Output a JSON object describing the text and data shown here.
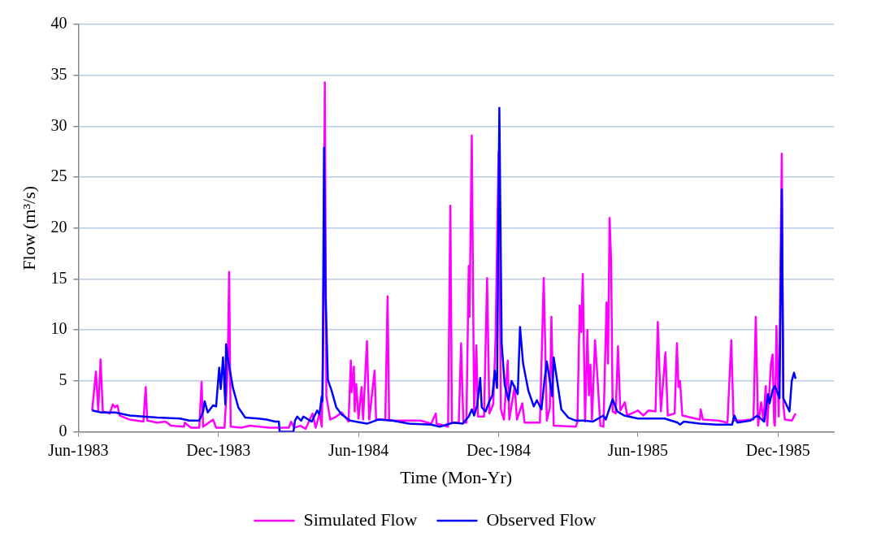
{
  "chart_data": {
    "type": "line",
    "xlabel": "Time (Mon-Yr)",
    "ylabel": "Flow (m³/s)",
    "xlim": [
      "1983-06-01",
      "1986-02-12"
    ],
    "xticks": [
      {
        "value": "1983-06-01",
        "label": "Jun-1983"
      },
      {
        "value": "1983-12-01",
        "label": "Dec-1983"
      },
      {
        "value": "1984-06-01",
        "label": "Jun-1984"
      },
      {
        "value": "1984-12-01",
        "label": "Dec-1984"
      },
      {
        "value": "1985-06-01",
        "label": "Jun-1985"
      },
      {
        "value": "1985-12-01",
        "label": "Dec-1985"
      }
    ],
    "ylim": [
      0,
      40
    ],
    "yticks": [
      0,
      5,
      10,
      15,
      20,
      25,
      30,
      35,
      40
    ],
    "grid": "y",
    "legend": "bottom",
    "marker": "none",
    "line_style": "solid",
    "series": [
      {
        "name": "Simulated Flow",
        "color": "#ff00ff",
        "x": [
          "1983-06-19",
          "1983-06-24",
          "1983-06-27",
          "1983-06-30",
          "1983-07-03",
          "1983-07-12",
          "1983-07-16",
          "1983-07-19",
          "1983-07-22",
          "1983-07-25",
          "1983-08-07",
          "1983-08-25",
          "1983-08-28",
          "1983-08-30",
          "1983-09-12",
          "1983-09-23",
          "1983-09-30",
          "1983-10-17",
          "1983-10-18",
          "1983-10-26",
          "1983-11-06",
          "1983-11-09",
          "1983-11-11",
          "1983-11-24",
          "1983-11-28",
          "1983-12-09",
          "1983-12-13",
          "1983-12-15",
          "1983-12-17",
          "1983-12-31",
          "1984-01-11",
          "1984-02-05",
          "1984-03-02",
          "1984-03-05",
          "1984-03-09",
          "1984-03-17",
          "1984-03-24",
          "1984-04-02",
          "1984-04-06",
          "1984-04-11",
          "1984-04-14",
          "1984-04-16",
          "1984-04-18",
          "1984-04-20",
          "1984-04-25",
          "1984-05-03",
          "1984-05-10",
          "1984-05-19",
          "1984-05-22",
          "1984-05-23",
          "1984-05-26",
          "1984-05-27",
          "1984-05-29",
          "1984-06-01",
          "1984-06-05",
          "1984-06-07",
          "1984-06-12",
          "1984-06-15",
          "1984-06-22",
          "1984-06-24",
          "1984-07-06",
          "1984-07-09",
          "1984-07-11",
          "1984-08-21",
          "1984-09-04",
          "1984-09-10",
          "1984-09-11",
          "1984-09-26",
          "1984-09-29",
          "1984-10-01",
          "1984-10-10",
          "1984-10-13",
          "1984-10-16",
          "1984-10-20",
          "1984-10-23",
          "1984-10-24",
          "1984-10-27",
          "1984-10-30",
          "1984-11-02",
          "1984-11-04",
          "1984-11-12",
          "1984-11-16",
          "1984-11-19",
          "1984-11-24",
          "1984-11-27",
          "1984-12-01",
          "1984-12-04",
          "1984-12-08",
          "1984-12-13",
          "1984-12-15",
          "1984-12-22",
          "1984-12-25",
          "1985-01-01",
          "1985-01-04",
          "1985-01-24",
          "1985-01-29",
          "1985-02-02",
          "1985-02-06",
          "1985-02-08",
          "1985-02-11",
          "1985-03-12",
          "1985-03-14",
          "1985-03-17",
          "1985-03-19",
          "1985-03-21",
          "1985-03-24",
          "1985-03-27",
          "1985-03-29",
          "1985-03-31",
          "1985-04-02",
          "1985-04-06",
          "1985-04-09",
          "1985-04-13",
          "1985-04-17",
          "1985-04-21",
          "1985-04-23",
          "1985-04-25",
          "1985-04-27",
          "1985-04-29",
          "1985-05-03",
          "1985-05-06",
          "1985-05-09",
          "1985-05-15",
          "1985-05-18",
          "1985-06-01",
          "1985-06-08",
          "1985-06-15",
          "1985-06-24",
          "1985-06-27",
          "1985-07-01",
          "1985-07-07",
          "1985-07-10",
          "1985-07-19",
          "1985-07-22",
          "1985-07-24",
          "1985-07-26",
          "1985-07-29",
          "1985-08-21",
          "1985-08-22",
          "1985-08-25",
          "1985-09-14",
          "1985-09-26",
          "1985-10-01",
          "1985-10-04",
          "1985-10-15",
          "1985-10-26",
          "1985-10-30",
          "1985-11-02",
          "1985-11-05",
          "1985-11-09",
          "1985-11-12",
          "1985-11-15",
          "1985-11-17",
          "1985-11-22",
          "1985-11-24",
          "1985-11-26",
          "1985-11-27",
          "1985-11-29",
          "1985-12-02",
          "1985-12-06",
          "1985-12-08",
          "1985-12-10",
          "1985-12-19",
          "1985-12-24"
        ],
        "values": [
          2.1,
          5.9,
          2.1,
          7.1,
          2.0,
          1.8,
          2.7,
          2.4,
          2.6,
          1.6,
          1.2,
          1.0,
          4.4,
          1.1,
          0.9,
          1.0,
          0.6,
          0.5,
          0.9,
          0.4,
          0.4,
          4.9,
          0.5,
          1.2,
          0.4,
          0.4,
          5.9,
          15.7,
          0.5,
          0.4,
          0.6,
          0.4,
          0.4,
          1.0,
          0.4,
          0.6,
          0.3,
          1.8,
          0.4,
          1.8,
          0.5,
          9,
          34.3,
          3.5,
          1.2,
          1.5,
          1.9,
          1.0,
          7.0,
          3.9,
          6.4,
          2.0,
          4.7,
          1.3,
          4.4,
          1.2,
          8.9,
          1.2,
          6.0,
          1.2,
          1.2,
          13.3,
          1.1,
          1.1,
          0.8,
          1.8,
          0.8,
          0.5,
          22.2,
          0.9,
          0.9,
          8.7,
          0.9,
          0.9,
          16.3,
          11.3,
          29.1,
          1.8,
          8.5,
          1.5,
          1.5,
          15.1,
          1.8,
          2.7,
          9.0,
          27.5,
          2.2,
          1.2,
          7.0,
          1.2,
          4.5,
          1.2,
          2.8,
          0.9,
          0.9,
          15.1,
          1.1,
          2.4,
          11.3,
          0.6,
          0.5,
          1.0,
          12.4,
          9.8,
          15.5,
          1.0,
          10.0,
          3.6,
          6.6,
          1.2,
          9.0,
          5.5,
          0.6,
          0.5,
          12.7,
          6.7,
          21.0,
          16.9,
          2.0,
          1.8,
          8.4,
          2.1,
          2.9,
          1.6,
          2.1,
          1.6,
          2.1,
          2.0,
          10.8,
          2.0,
          7.8,
          1.6,
          1.8,
          8.7,
          4.4,
          5.0,
          1.6,
          1.2,
          2.2,
          1.2,
          1.1,
          0.9,
          9.0,
          1.1,
          1.1,
          1.2,
          1.2,
          11.3,
          0.6,
          2.9,
          1.1,
          4.5,
          0.6,
          6.8,
          7.6,
          0.9,
          0.6,
          10.4,
          1.5,
          27.3,
          2.6,
          1.2,
          1.1,
          1.8
        ]
      },
      {
        "name": "Observed Flow",
        "color": "#0000ff",
        "x": [
          "1983-06-19",
          "1983-07-01",
          "1983-07-19",
          "1983-08-07",
          "1983-09-12",
          "1983-10-12",
          "1983-10-24",
          "1983-11-06",
          "1983-11-11",
          "1983-11-13",
          "1983-11-17",
          "1983-11-24",
          "1983-11-28",
          "1983-12-02",
          "1983-12-04",
          "1983-12-07",
          "1983-12-10",
          "1983-12-11",
          "1983-12-14",
          "1983-12-20",
          "1983-12-27",
          "1984-01-05",
          "1984-01-22",
          "1984-02-02",
          "1984-02-13",
          "1984-02-18",
          "1984-02-19",
          "1984-03-08",
          "1984-03-10",
          "1984-03-13",
          "1984-03-18",
          "1984-03-21",
          "1984-04-01",
          "1984-04-08",
          "1984-04-11",
          "1984-04-14",
          "1984-04-15",
          "1984-04-17",
          "1984-04-19",
          "1984-04-22",
          "1984-04-27",
          "1984-05-03",
          "1984-05-10",
          "1984-05-21",
          "1984-06-12",
          "1984-06-27",
          "1984-07-15",
          "1984-08-06",
          "1984-09-04",
          "1984-09-15",
          "1984-10-03",
          "1984-10-15",
          "1984-10-23",
          "1984-10-27",
          "1984-10-30",
          "1984-11-03",
          "1984-11-07",
          "1984-11-09",
          "1984-11-14",
          "1984-11-19",
          "1984-11-23",
          "1984-11-26",
          "1984-11-29",
          "1984-12-02",
          "1984-12-05",
          "1984-12-09",
          "1984-12-14",
          "1984-12-18",
          "1984-12-26",
          "1984-12-29",
          "1985-01-02",
          "1985-01-09",
          "1985-01-16",
          "1985-01-20",
          "1985-01-26",
          "1985-01-29",
          "1985-02-02",
          "1985-02-09",
          "1985-02-11",
          "1985-02-21",
          "1985-03-02",
          "1985-03-12",
          "1985-03-23",
          "1985-04-03",
          "1985-04-17",
          "1985-04-20",
          "1985-04-29",
          "1985-05-05",
          "1985-05-14",
          "1985-06-01",
          "1985-06-23",
          "1985-07-06",
          "1985-07-23",
          "1985-07-26",
          "1985-07-31",
          "1985-08-21",
          "1985-09-12",
          "1985-10-02",
          "1985-10-05",
          "1985-10-09",
          "1985-10-26",
          "1985-11-04",
          "1985-11-13",
          "1985-11-18",
          "1985-11-20",
          "1985-11-24",
          "1985-11-27",
          "1985-12-03",
          "1985-12-06",
          "1985-12-08",
          "1985-12-16",
          "1985-12-19",
          "1985-12-22",
          "1985-12-24"
        ],
        "values": [
          2.1,
          1.9,
          1.9,
          1.6,
          1.4,
          1.3,
          1.1,
          1.1,
          2.0,
          3.0,
          1.9,
          2.6,
          2.5,
          6.3,
          4.2,
          7.3,
          2.7,
          8.6,
          6.9,
          4.3,
          2.4,
          1.4,
          1.3,
          1.2,
          1.0,
          1.0,
          0,
          0,
          1.1,
          1.5,
          1.1,
          1.5,
          1.0,
          2.1,
          1.7,
          3.5,
          3.0,
          27.9,
          13.3,
          5.1,
          4.0,
          2.4,
          1.7,
          1.1,
          0.8,
          1.2,
          1.1,
          0.8,
          0.7,
          0.5,
          0.9,
          0.8,
          1.5,
          2.2,
          1.6,
          2.6,
          5.3,
          2.4,
          2.0,
          3.0,
          3.6,
          6.0,
          4.3,
          31.8,
          8.7,
          4.6,
          3.1,
          5.0,
          3.7,
          10.3,
          6.7,
          4.0,
          2.5,
          3.1,
          2.2,
          4.4,
          6.9,
          3.5,
          7.3,
          2.2,
          1.4,
          1.1,
          1.1,
          1.0,
          1.6,
          1.2,
          3.2,
          2.0,
          1.6,
          1.3,
          1.3,
          1.3,
          0.9,
          0.7,
          1.0,
          0.8,
          0.7,
          0.7,
          1.6,
          0.9,
          1.1,
          1.6,
          1.0,
          3.7,
          2.8,
          4.1,
          4.5,
          3.3,
          23.8,
          3.3,
          2.0,
          5.0,
          5.8,
          5.2
        ]
      }
    ]
  }
}
